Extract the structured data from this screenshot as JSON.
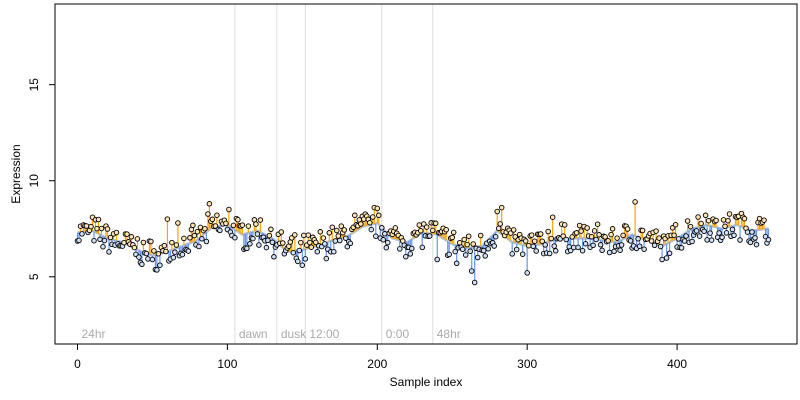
{
  "chart_data": {
    "type": "scatter",
    "title": "",
    "xlabel": "Sample index",
    "ylabel": "Expression",
    "xlim": [
      -15,
      480
    ],
    "ylim": [
      1.5,
      19.2
    ],
    "x_ticks": [
      0,
      100,
      200,
      300,
      400
    ],
    "y_ticks": [
      5,
      10,
      15
    ],
    "baseline": 7.0,
    "sections": [
      {
        "label": "24hr",
        "x": 0
      },
      {
        "label": "dawn",
        "x": 105
      },
      {
        "label": "dusk",
        "x": 133
      },
      {
        "label": "12:00",
        "x": 152
      },
      {
        "label": "0:00",
        "x": 203
      },
      {
        "label": "48hr",
        "x": 237
      }
    ],
    "colors": {
      "above": "#ffa500",
      "below": "#6495ed",
      "smooth": "#b0c4de",
      "section_line": "#dddddd",
      "section_text": "#aaaaaa",
      "point_fill": "#ffe4b5",
      "point_stroke": "#000000"
    },
    "profile": [
      [
        0,
        7.3
      ],
      [
        10,
        7.4
      ],
      [
        20,
        7.0
      ],
      [
        30,
        6.8
      ],
      [
        40,
        6.4
      ],
      [
        50,
        6.1
      ],
      [
        60,
        6.3
      ],
      [
        70,
        6.6
      ],
      [
        80,
        6.9
      ],
      [
        90,
        7.6
      ],
      [
        100,
        7.7
      ],
      [
        110,
        7.2
      ],
      [
        120,
        7.4
      ],
      [
        130,
        7.0
      ],
      [
        140,
        6.3
      ],
      [
        150,
        6.4
      ],
      [
        160,
        6.6
      ],
      [
        170,
        6.9
      ],
      [
        180,
        7.1
      ],
      [
        190,
        7.6
      ],
      [
        200,
        7.8
      ],
      [
        210,
        7.0
      ],
      [
        220,
        6.8
      ],
      [
        230,
        7.3
      ],
      [
        240,
        7.2
      ],
      [
        250,
        6.7
      ],
      [
        260,
        6.5
      ],
      [
        270,
        6.6
      ],
      [
        280,
        7.4
      ],
      [
        290,
        6.8
      ],
      [
        300,
        6.6
      ],
      [
        310,
        6.7
      ],
      [
        320,
        7.0
      ],
      [
        330,
        7.0
      ],
      [
        340,
        7.0
      ],
      [
        350,
        6.9
      ],
      [
        360,
        6.8
      ],
      [
        370,
        7.2
      ],
      [
        380,
        6.9
      ],
      [
        390,
        6.6
      ],
      [
        400,
        7.0
      ],
      [
        410,
        7.5
      ],
      [
        420,
        7.7
      ],
      [
        430,
        7.5
      ],
      [
        440,
        7.7
      ],
      [
        450,
        7.4
      ],
      [
        460,
        7.5
      ]
    ],
    "extremes": [
      [
        88,
        8.8
      ],
      [
        101,
        8.5
      ],
      [
        67,
        7.8
      ],
      [
        60,
        8.0
      ],
      [
        198,
        8.6
      ],
      [
        185,
        8.2
      ],
      [
        280,
        8.4
      ],
      [
        283,
        8.6
      ],
      [
        372,
        8.9
      ],
      [
        419,
        8.2
      ],
      [
        444,
        8.1
      ],
      [
        317,
        8.1
      ],
      [
        265,
        4.7
      ],
      [
        300,
        5.2
      ],
      [
        150,
        5.6
      ],
      [
        147,
        5.8
      ],
      [
        55,
        5.6
      ],
      [
        50,
        5.9
      ],
      [
        263,
        5.3
      ],
      [
        240,
        5.9
      ],
      [
        253,
        5.7
      ],
      [
        390,
        5.9
      ]
    ],
    "n_points": 462
  }
}
